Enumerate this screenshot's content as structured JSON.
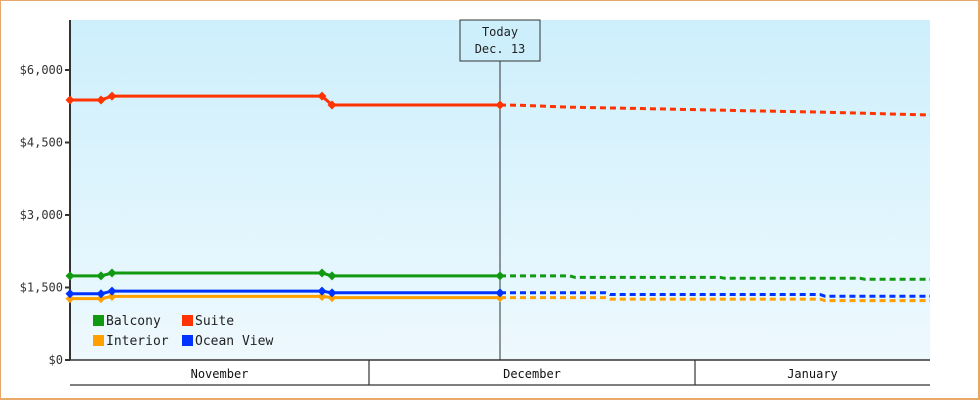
{
  "chart_data": {
    "type": "line",
    "title": "",
    "xlabel": "",
    "ylabel": "",
    "ylim": [
      0,
      7000
    ],
    "y_ticks": [
      "$0",
      "$1,500",
      "$3,000",
      "$4,500",
      "$6,000"
    ],
    "y_tick_values": [
      0,
      1500,
      3000,
      4500,
      6000
    ],
    "x_categories": [
      "November",
      "December",
      "January"
    ],
    "annotation": {
      "line1": "Today",
      "line2": "Dec. 13"
    },
    "legend": [
      {
        "name": "Balcony",
        "color": "#119911"
      },
      {
        "name": "Suite",
        "color": "#ff3300"
      },
      {
        "name": "Interior",
        "color": "#ffa000"
      },
      {
        "name": "Ocean View",
        "color": "#0033ff"
      }
    ],
    "series": [
      {
        "name": "Suite",
        "color": "#ff3300",
        "actual": [
          [
            70,
            5380
          ],
          [
            101,
            5380
          ],
          [
            112,
            5460
          ],
          [
            322,
            5460
          ],
          [
            332,
            5275
          ],
          [
            500,
            5275
          ]
        ],
        "projected": [
          [
            500,
            5275
          ],
          [
            520,
            5270
          ],
          [
            570,
            5230
          ],
          [
            650,
            5200
          ],
          [
            740,
            5160
          ],
          [
            820,
            5130
          ],
          [
            930,
            5070
          ]
        ]
      },
      {
        "name": "Balcony",
        "color": "#119911",
        "actual": [
          [
            70,
            1740
          ],
          [
            101,
            1740
          ],
          [
            112,
            1800
          ],
          [
            322,
            1800
          ],
          [
            332,
            1740
          ],
          [
            500,
            1740
          ]
        ],
        "projected": [
          [
            500,
            1740
          ],
          [
            570,
            1740
          ],
          [
            575,
            1710
          ],
          [
            720,
            1710
          ],
          [
            725,
            1690
          ],
          [
            860,
            1690
          ],
          [
            865,
            1670
          ],
          [
            930,
            1670
          ]
        ]
      },
      {
        "name": "Ocean View",
        "color": "#0033ff",
        "actual": [
          [
            70,
            1370
          ],
          [
            101,
            1370
          ],
          [
            112,
            1425
          ],
          [
            322,
            1425
          ],
          [
            332,
            1390
          ],
          [
            500,
            1390
          ]
        ],
        "projected": [
          [
            500,
            1390
          ],
          [
            605,
            1390
          ],
          [
            610,
            1355
          ],
          [
            820,
            1355
          ],
          [
            825,
            1320
          ],
          [
            930,
            1320
          ]
        ]
      },
      {
        "name": "Interior",
        "color": "#ffa000",
        "actual": [
          [
            70,
            1270
          ],
          [
            101,
            1270
          ],
          [
            112,
            1315
          ],
          [
            322,
            1315
          ],
          [
            332,
            1290
          ],
          [
            500,
            1290
          ]
        ],
        "projected": [
          [
            500,
            1290
          ],
          [
            605,
            1290
          ],
          [
            610,
            1260
          ],
          [
            820,
            1260
          ],
          [
            825,
            1230
          ],
          [
            930,
            1230
          ]
        ]
      }
    ]
  }
}
